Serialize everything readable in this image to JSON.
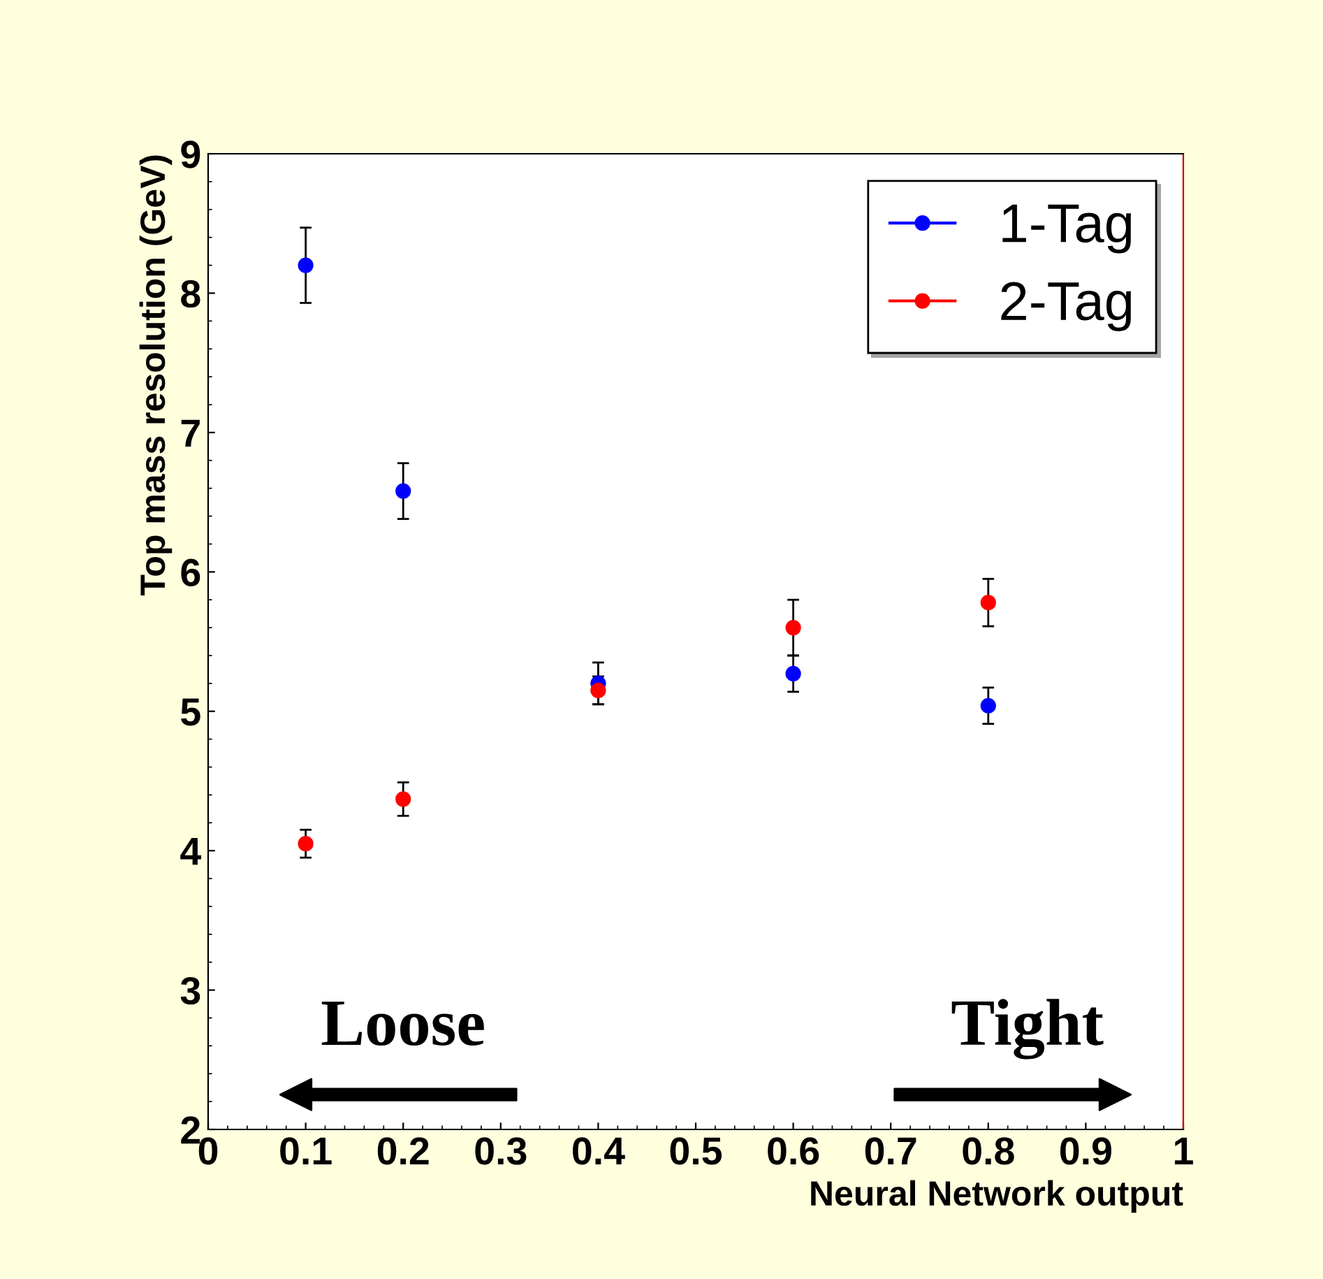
{
  "chart_data": {
    "type": "scatter",
    "xlabel": "Neural Network output",
    "ylabel": "Top mass resolution (GeV)",
    "x": [
      0.1,
      0.2,
      0.4,
      0.6,
      0.8
    ],
    "series": [
      {
        "name": "1-Tag",
        "color": "#0000ff",
        "values": [
          8.2,
          6.58,
          5.2,
          5.27,
          5.04
        ],
        "errors": [
          0.27,
          0.2,
          0.15,
          0.13,
          0.13
        ]
      },
      {
        "name": "2-Tag",
        "color": "#ff0000",
        "values": [
          4.05,
          4.37,
          5.15,
          5.6,
          5.78
        ],
        "errors": [
          0.1,
          0.12,
          0.1,
          0.2,
          0.17
        ]
      }
    ],
    "xlim": [
      0,
      1
    ],
    "ylim": [
      2,
      9
    ],
    "xticks": [
      0,
      0.1,
      0.2,
      0.3,
      0.4,
      0.5,
      0.6,
      0.7,
      0.8,
      0.9,
      1
    ],
    "yticks": [
      2,
      3,
      4,
      5,
      6,
      7,
      8,
      9
    ],
    "annotations": [
      "Loose",
      "Tight"
    ],
    "legend": "top right",
    "marker": "circle",
    "grid": false
  }
}
